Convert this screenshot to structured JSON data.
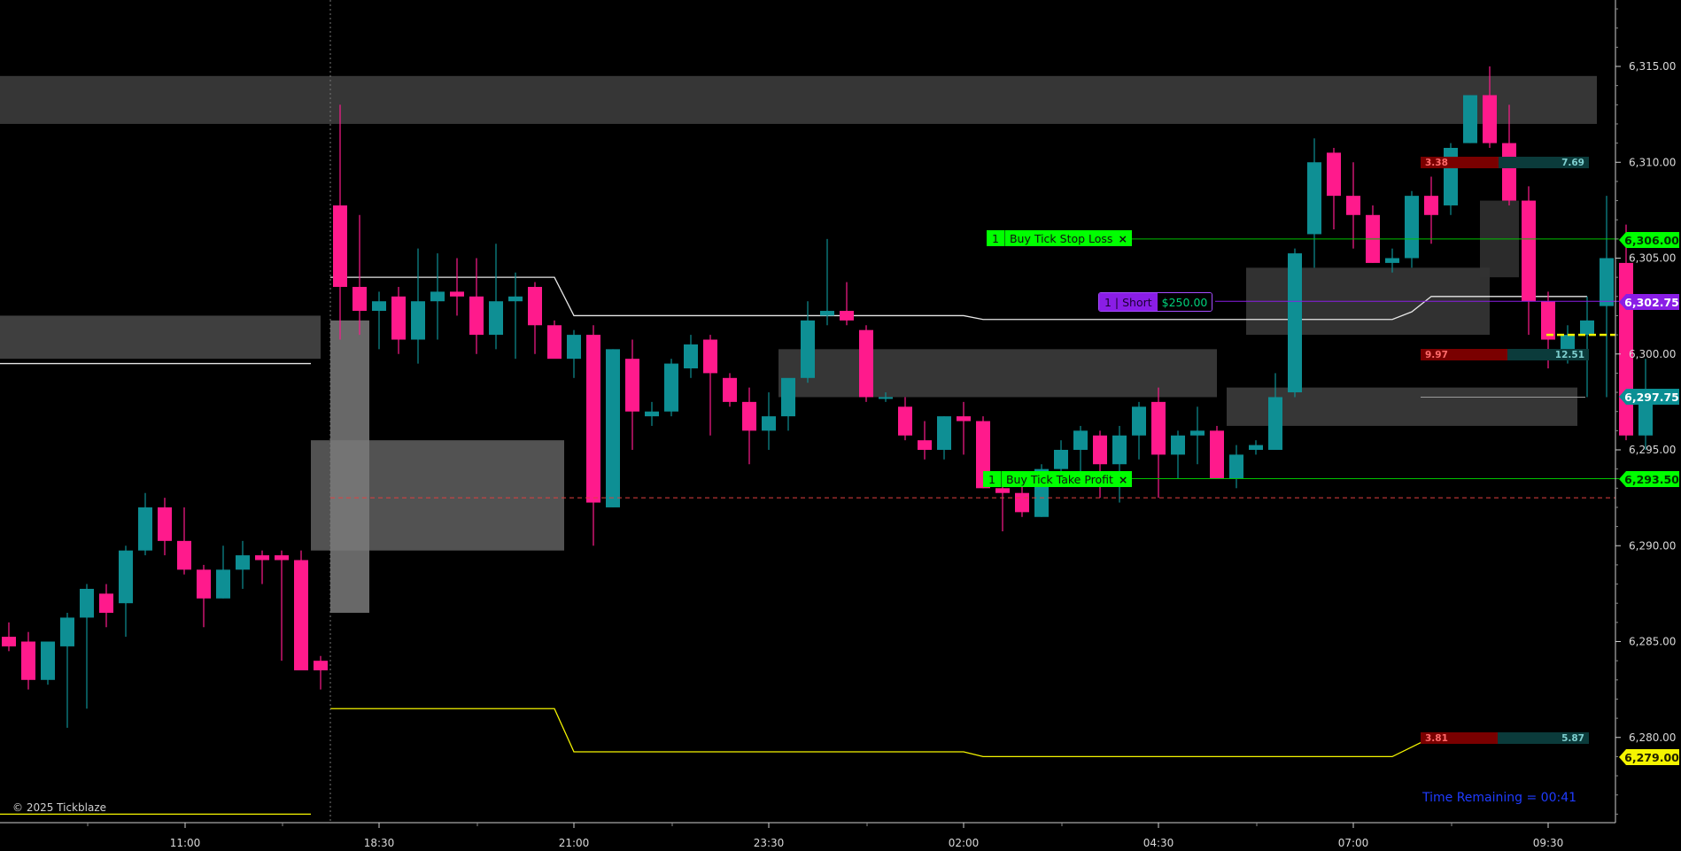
{
  "chart_data": {
    "type": "candlestick",
    "instrument_note": "",
    "x_tick_labels": [
      "11:00",
      "18:30",
      "21:00",
      "23:30",
      "02:00",
      "04:30",
      "07:00",
      "09:30"
    ],
    "y_tick_labels": [
      "6,315.00",
      "6,310.00",
      "6,305.00",
      "6,300.00",
      "6,295.00",
      "6,290.00",
      "6,285.00",
      "6,280.00"
    ],
    "ylim": [
      6275.75,
      6318.5
    ],
    "y_ticks": [
      6315,
      6310,
      6305,
      6300,
      6295,
      6290,
      6285,
      6280
    ],
    "session_break_index": 16,
    "candles": [
      {
        "o": 6285.25,
        "h": 6286.0,
        "l": 6284.5,
        "c": 6284.75
      },
      {
        "o": 6285.0,
        "h": 6285.5,
        "l": 6282.5,
        "c": 6283.0
      },
      {
        "o": 6283.0,
        "h": 6285.0,
        "l": 6282.75,
        "c": 6285.0
      },
      {
        "o": 6284.75,
        "h": 6286.5,
        "l": 6280.5,
        "c": 6286.25
      },
      {
        "o": 6286.25,
        "h": 6288.0,
        "l": 6281.5,
        "c": 6287.75
      },
      {
        "o": 6287.5,
        "h": 6288.0,
        "l": 6285.75,
        "c": 6286.5
      },
      {
        "o": 6287.0,
        "h": 6290.0,
        "l": 6285.25,
        "c": 6289.75
      },
      {
        "o": 6289.75,
        "h": 6292.75,
        "l": 6289.5,
        "c": 6292.0
      },
      {
        "o": 6292.0,
        "h": 6292.5,
        "l": 6289.5,
        "c": 6290.25
      },
      {
        "o": 6290.25,
        "h": 6292.0,
        "l": 6288.5,
        "c": 6288.75
      },
      {
        "o": 6288.75,
        "h": 6289.0,
        "l": 6285.75,
        "c": 6287.25
      },
      {
        "o": 6287.25,
        "h": 6290.0,
        "l": 6287.25,
        "c": 6288.75
      },
      {
        "o": 6288.75,
        "h": 6290.25,
        "l": 6287.75,
        "c": 6289.5
      },
      {
        "o": 6289.5,
        "h": 6289.75,
        "l": 6288.0,
        "c": 6289.25
      },
      {
        "o": 6289.5,
        "h": 6289.75,
        "l": 6284.0,
        "c": 6289.25
      },
      {
        "o": 6289.25,
        "h": 6289.75,
        "l": 6283.75,
        "c": 6283.5
      },
      {
        "o": 6284.0,
        "h": 6284.25,
        "l": 6282.5,
        "c": 6283.5
      },
      {
        "o": 6307.75,
        "h": 6313.0,
        "l": 6300.75,
        "c": 6303.5
      },
      {
        "o": 6303.5,
        "h": 6307.25,
        "l": 6301.0,
        "c": 6302.25
      },
      {
        "o": 6302.25,
        "h": 6303.25,
        "l": 6300.25,
        "c": 6302.75
      },
      {
        "o": 6303.0,
        "h": 6303.5,
        "l": 6300.0,
        "c": 6300.75
      },
      {
        "o": 6300.75,
        "h": 6305.5,
        "l": 6299.5,
        "c": 6302.75
      },
      {
        "o": 6302.75,
        "h": 6305.25,
        "l": 6300.75,
        "c": 6303.25
      },
      {
        "o": 6303.25,
        "h": 6305.0,
        "l": 6302.0,
        "c": 6303.0
      },
      {
        "o": 6303.0,
        "h": 6305.0,
        "l": 6300.0,
        "c": 6301.0
      },
      {
        "o": 6301.0,
        "h": 6305.75,
        "l": 6300.25,
        "c": 6302.75
      },
      {
        "o": 6302.75,
        "h": 6304.25,
        "l": 6299.75,
        "c": 6303.0
      },
      {
        "o": 6303.5,
        "h": 6303.75,
        "l": 6300.0,
        "c": 6301.5
      },
      {
        "o": 6301.5,
        "h": 6301.75,
        "l": 6300.0,
        "c": 6299.75
      },
      {
        "o": 6299.75,
        "h": 6301.25,
        "l": 6298.75,
        "c": 6301.0
      },
      {
        "o": 6301.0,
        "h": 6301.5,
        "l": 6290.0,
        "c": 6292.25
      },
      {
        "o": 6292.0,
        "h": 6300.25,
        "l": 6292.0,
        "c": 6300.25
      },
      {
        "o": 6299.75,
        "h": 6300.75,
        "l": 6295.0,
        "c": 6297.0
      },
      {
        "o": 6296.75,
        "h": 6297.5,
        "l": 6296.25,
        "c": 6297.0
      },
      {
        "o": 6297.0,
        "h": 6299.75,
        "l": 6296.75,
        "c": 6299.5
      },
      {
        "o": 6299.25,
        "h": 6301.0,
        "l": 6298.75,
        "c": 6300.5
      },
      {
        "o": 6300.75,
        "h": 6301.0,
        "l": 6295.75,
        "c": 6299.0
      },
      {
        "o": 6298.75,
        "h": 6299.0,
        "l": 6297.25,
        "c": 6297.5
      },
      {
        "o": 6297.5,
        "h": 6298.25,
        "l": 6294.25,
        "c": 6296.0
      },
      {
        "o": 6296.0,
        "h": 6298.0,
        "l": 6295.0,
        "c": 6296.75
      },
      {
        "o": 6296.75,
        "h": 6298.5,
        "l": 6296.0,
        "c": 6298.75
      },
      {
        "o": 6298.75,
        "h": 6302.75,
        "l": 6298.5,
        "c": 6301.75
      },
      {
        "o": 6302.0,
        "h": 6306.0,
        "l": 6301.5,
        "c": 6302.25
      },
      {
        "o": 6302.25,
        "h": 6303.75,
        "l": 6301.5,
        "c": 6301.75
      },
      {
        "o": 6301.25,
        "h": 6301.5,
        "l": 6297.5,
        "c": 6297.75
      },
      {
        "o": 6297.75,
        "h": 6298.0,
        "l": 6297.5,
        "c": 6297.75
      },
      {
        "o": 6297.25,
        "h": 6297.75,
        "l": 6295.5,
        "c": 6295.75
      },
      {
        "o": 6295.5,
        "h": 6296.5,
        "l": 6294.5,
        "c": 6295.0
      },
      {
        "o": 6295.0,
        "h": 6296.75,
        "l": 6294.5,
        "c": 6296.75
      },
      {
        "o": 6296.75,
        "h": 6297.5,
        "l": 6294.75,
        "c": 6296.5
      },
      {
        "o": 6296.5,
        "h": 6296.75,
        "l": 6293.0,
        "c": 6293.0
      },
      {
        "o": 6293.0,
        "h": 6293.25,
        "l": 6290.75,
        "c": 6292.75
      },
      {
        "o": 6292.75,
        "h": 6293.25,
        "l": 6291.5,
        "c": 6291.75
      },
      {
        "o": 6291.5,
        "h": 6294.25,
        "l": 6291.5,
        "c": 6294.0
      },
      {
        "o": 6294.0,
        "h": 6295.5,
        "l": 6293.5,
        "c": 6295.0
      },
      {
        "o": 6295.0,
        "h": 6296.25,
        "l": 6293.25,
        "c": 6296.0
      },
      {
        "o": 6295.75,
        "h": 6296.0,
        "l": 6292.5,
        "c": 6294.25
      },
      {
        "o": 6294.25,
        "h": 6296.25,
        "l": 6292.25,
        "c": 6295.75
      },
      {
        "o": 6295.75,
        "h": 6297.5,
        "l": 6294.5,
        "c": 6297.25
      },
      {
        "o": 6297.5,
        "h": 6298.25,
        "l": 6292.5,
        "c": 6294.75
      },
      {
        "o": 6294.75,
        "h": 6296.0,
        "l": 6293.5,
        "c": 6295.75
      },
      {
        "o": 6295.75,
        "h": 6297.25,
        "l": 6294.25,
        "c": 6296.0
      },
      {
        "o": 6296.0,
        "h": 6296.25,
        "l": 6293.5,
        "c": 6293.5
      },
      {
        "o": 6293.5,
        "h": 6295.25,
        "l": 6293.0,
        "c": 6294.75
      },
      {
        "o": 6295.0,
        "h": 6295.5,
        "l": 6294.75,
        "c": 6295.25
      },
      {
        "o": 6295.0,
        "h": 6299.0,
        "l": 6295.0,
        "c": 6297.75
      },
      {
        "o": 6298.0,
        "h": 6305.5,
        "l": 6297.75,
        "c": 6305.25
      },
      {
        "o": 6306.25,
        "h": 6311.25,
        "l": 6304.5,
        "c": 6310.0
      },
      {
        "o": 6310.5,
        "h": 6310.75,
        "l": 6306.5,
        "c": 6308.25
      },
      {
        "o": 6308.25,
        "h": 6310.0,
        "l": 6305.5,
        "c": 6307.25
      },
      {
        "o": 6307.25,
        "h": 6307.75,
        "l": 6304.75,
        "c": 6304.75
      },
      {
        "o": 6304.75,
        "h": 6305.5,
        "l": 6304.25,
        "c": 6305.0
      },
      {
        "o": 6305.0,
        "h": 6308.5,
        "l": 6304.5,
        "c": 6308.25
      },
      {
        "o": 6308.25,
        "h": 6309.25,
        "l": 6305.75,
        "c": 6307.25
      },
      {
        "o": 6307.75,
        "h": 6311.0,
        "l": 6307.25,
        "c": 6310.75
      },
      {
        "o": 6311.0,
        "h": 6313.5,
        "l": 6311.0,
        "c": 6313.5
      },
      {
        "o": 6313.5,
        "h": 6315.0,
        "l": 6310.75,
        "c": 6311.0
      },
      {
        "o": 6311.0,
        "h": 6313.0,
        "l": 6307.75,
        "c": 6308.0
      },
      {
        "o": 6308.0,
        "h": 6308.75,
        "l": 6301.0,
        "c": 6302.75
      },
      {
        "o": 6302.75,
        "h": 6303.25,
        "l": 6299.25,
        "c": 6300.75
      },
      {
        "o": 6299.75,
        "h": 6301.5,
        "l": 6299.5,
        "c": 6301.0
      },
      {
        "o": 6301.0,
        "h": 6303.0,
        "l": 6297.75,
        "c": 6301.75
      },
      {
        "o": 6302.5,
        "h": 6308.25,
        "l": 6297.75,
        "c": 6305.0
      },
      {
        "o": 6304.75,
        "h": 6306.75,
        "l": 6295.5,
        "c": 6295.75
      },
      {
        "o": 6295.75,
        "h": 6299.75,
        "l": 6295.0,
        "c": 6297.75
      }
    ],
    "overlay_lines": {
      "white": [
        {
          "x": 16.5,
          "y": 6304.0
        },
        {
          "x": 28.0,
          "y": 6304.0
        },
        {
          "x": 29.0,
          "y": 6302.0
        },
        {
          "x": 49.0,
          "y": 6302.0
        },
        {
          "x": 50.0,
          "y": 6301.8
        },
        {
          "x": 71.0,
          "y": 6301.8
        },
        {
          "x": 72.0,
          "y": 6302.2
        },
        {
          "x": 73.0,
          "y": 6303.0
        },
        {
          "x": 81.0,
          "y": 6303.0
        }
      ],
      "white_prev": [
        {
          "x": -1.0,
          "y": 6299.5
        },
        {
          "x": 15.5,
          "y": 6299.5
        }
      ],
      "yellow": [
        {
          "x": 16.5,
          "y": 6281.5
        },
        {
          "x": 28.0,
          "y": 6281.5
        },
        {
          "x": 29.0,
          "y": 6279.25
        },
        {
          "x": 49.0,
          "y": 6279.25
        },
        {
          "x": 50.0,
          "y": 6279.0
        },
        {
          "x": 71.0,
          "y": 6279.0
        },
        {
          "x": 73.0,
          "y": 6280.0
        },
        {
          "x": 81.0,
          "y": 6280.0
        }
      ],
      "yellow_prev": [
        {
          "x": -1.0,
          "y": 6276.0
        },
        {
          "x": 15.5,
          "y": 6276.0
        }
      ],
      "red_dashed": 6292.5,
      "green_stop": 6306.0,
      "green_target": 6293.5,
      "purple_entry": 6302.75,
      "gray_level": 6297.75,
      "yellow_dash_level": 6301.0
    },
    "zones": [
      {
        "x0": -1.0,
        "x1": 81.5,
        "y0": 6312.0,
        "y1": 6314.5,
        "color": "#404040"
      },
      {
        "x0": -1.0,
        "x1": 16.0,
        "y0": 6299.75,
        "y1": 6302.0,
        "color": "#4a4a4a"
      },
      {
        "x0": 15.5,
        "x1": 28.5,
        "y0": 6289.75,
        "y1": 6295.5,
        "color": "#606060"
      },
      {
        "x0": 16.5,
        "x1": 18.5,
        "y0": 6286.5,
        "y1": 6301.75,
        "color": "#7a7a7a"
      },
      {
        "x0": 39.5,
        "x1": 62.0,
        "y0": 6297.75,
        "y1": 6300.25,
        "color": "#404040"
      },
      {
        "x0": 62.5,
        "x1": 80.5,
        "y0": 6296.25,
        "y1": 6298.25,
        "color": "#404040"
      },
      {
        "x0": 63.5,
        "x1": 76.0,
        "y0": 6301.0,
        "y1": 6304.5,
        "color": "#3a3a3a"
      },
      {
        "x0": 75.5,
        "x1": 77.5,
        "y0": 6304.0,
        "y1": 6308.0,
        "color": "#333333"
      }
    ]
  },
  "orders": {
    "stop": {
      "qty": "1",
      "label": "Buy Tick Stop Loss",
      "close": "×"
    },
    "target": {
      "qty": "1",
      "label": "Buy Tick Take Profit",
      "close": "×"
    },
    "position": {
      "label": "1 | Short",
      "pnl": "$250.00"
    }
  },
  "price_flags": {
    "stop": "6,306.00",
    "entry": "6,302.75",
    "last": "6,297.75",
    "target": "6,293.50",
    "lower": "6,279.00"
  },
  "stats": {
    "top_left": "3.38",
    "top_right": "7.69",
    "mid_left": "9.97",
    "mid_right": "12.51",
    "bot_left": "3.81",
    "bot_right": "5.87"
  },
  "copyright": "© 2025 Tickblaze",
  "timer": "Time Remaining = 00:41",
  "colors": {
    "bull": "#0e8f94",
    "bear": "#ff1a8c",
    "background": "#000000",
    "axis_text": "#d8d8d8",
    "green_order": "#00ff00",
    "purple_position": "#8a1de6",
    "last_price": "#0b8f94",
    "yellow": "#f5f500"
  }
}
